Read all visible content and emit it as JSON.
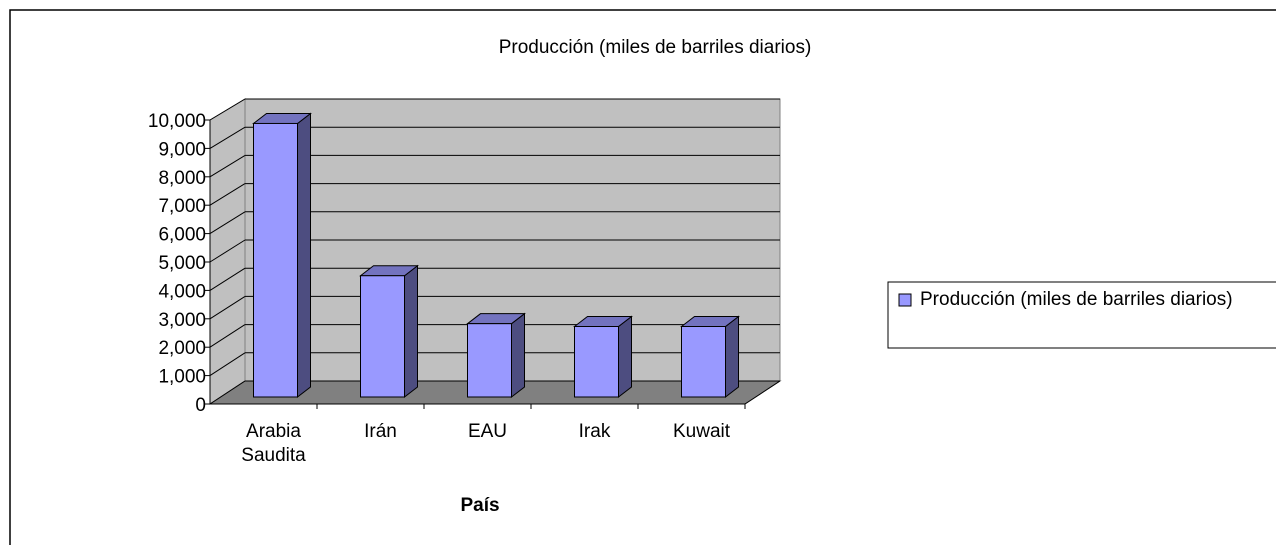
{
  "chart_data": {
    "type": "bar3d",
    "title": "Producción (miles de barriles diarios)",
    "x_label": "País",
    "categories": [
      "Arabia Saudita",
      "Irán",
      "EAU",
      "Irak",
      "Kuwait"
    ],
    "series": [
      {
        "name": "Producción (miles de barriles diarios)",
        "color": "#9999ff",
        "values": [
          9700,
          4300,
          2600,
          2500,
          2500
        ]
      }
    ],
    "ylim": [
      0,
      10000
    ],
    "yticks": [
      0,
      {
        "value": 1000,
        "label": "1,000"
      },
      {
        "value": 2000,
        "label": "2,000"
      },
      {
        "value": 3000,
        "label": "3,000"
      },
      {
        "value": 4000,
        "label": "4,000"
      },
      {
        "value": 5000,
        "label": "5,000"
      },
      {
        "value": 6000,
        "label": "6,000"
      },
      {
        "value": 7000,
        "label": "7,000"
      },
      {
        "value": 8000,
        "label": "8,000"
      },
      {
        "value": 9000,
        "label": "9,000"
      },
      {
        "value": 10000,
        "label": "10,000"
      }
    ],
    "grid": true,
    "legend": "right"
  }
}
